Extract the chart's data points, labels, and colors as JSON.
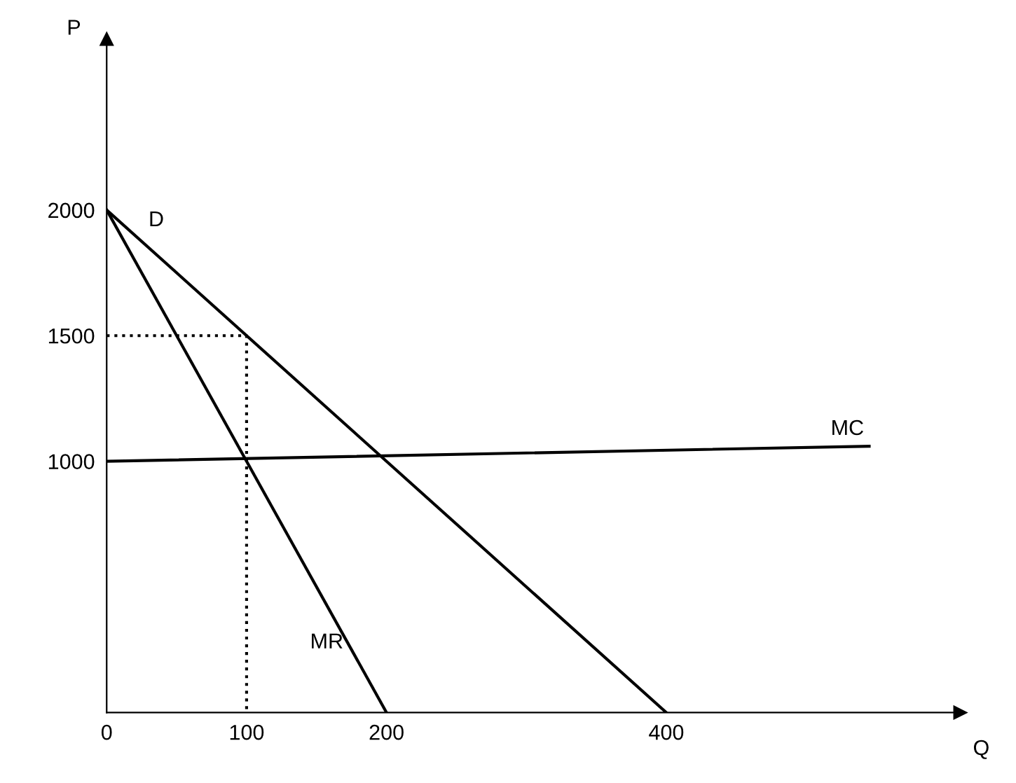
{
  "chart_data": {
    "type": "line",
    "xlabel": "Q",
    "ylabel": "P",
    "xlim": [
      0,
      610
    ],
    "ylim": [
      0,
      2680
    ],
    "xticks": [
      0,
      100,
      200,
      400
    ],
    "yticks": [
      1000,
      1500,
      2000
    ],
    "grid": false,
    "legend": false,
    "marker": "none",
    "series": [
      {
        "name": "D",
        "color": "#000000",
        "x": [
          0,
          400
        ],
        "values": [
          2000,
          0
        ],
        "line_style": "solid"
      },
      {
        "name": "MR",
        "color": "#000000",
        "x": [
          0,
          200
        ],
        "values": [
          2000,
          0
        ],
        "line_style": "solid"
      },
      {
        "name": "MC",
        "color": "#000000",
        "x": [
          0,
          545
        ],
        "values": [
          1000,
          1060
        ],
        "line_style": "solid"
      },
      {
        "color": "#000000",
        "x": [
          0,
          100,
          100
        ],
        "values": [
          1500,
          1500,
          0
        ],
        "line_style": "dotted"
      }
    ]
  }
}
